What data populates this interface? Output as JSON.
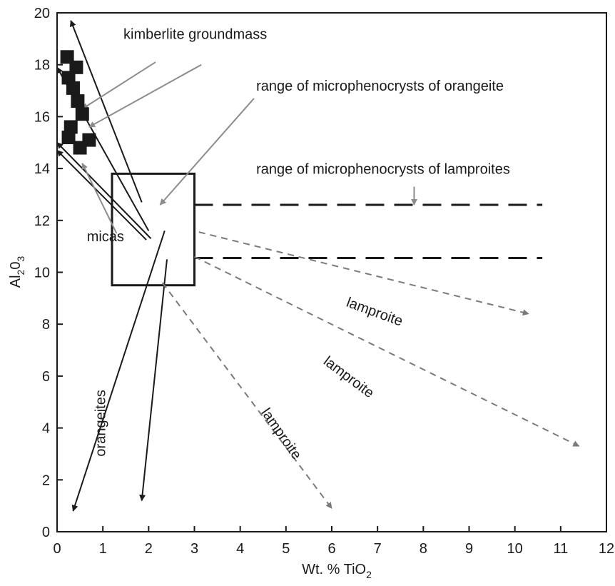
{
  "chart_data": {
    "type": "scatter",
    "xlabel": {
      "main": "Wt. % TiO",
      "sub": "2"
    },
    "ylabel": {
      "p1": "Al",
      "s1": "2",
      "p2": "0",
      "s2": "3"
    },
    "xlim": [
      0,
      12
    ],
    "ylim": [
      0,
      20
    ],
    "x_ticks": [
      0,
      1,
      2,
      3,
      4,
      5,
      6,
      7,
      8,
      9,
      10,
      11,
      12
    ],
    "y_ticks": [
      0,
      2,
      4,
      6,
      8,
      10,
      12,
      14,
      16,
      18,
      20
    ],
    "grid": false,
    "points": [
      {
        "x": 0.22,
        "y": 18.3
      },
      {
        "x": 0.42,
        "y": 17.9
      },
      {
        "x": 0.25,
        "y": 17.5
      },
      {
        "x": 0.35,
        "y": 17.1
      },
      {
        "x": 0.45,
        "y": 16.6
      },
      {
        "x": 0.55,
        "y": 16.1
      },
      {
        "x": 0.3,
        "y": 15.6
      },
      {
        "x": 0.25,
        "y": 15.2
      },
      {
        "x": 0.7,
        "y": 15.1
      },
      {
        "x": 0.5,
        "y": 14.8
      }
    ],
    "boxes": [
      {
        "name": "orangeite-microphenocryst-range",
        "x0": 1.2,
        "x1": 3.0,
        "y0": 9.5,
        "y1": 13.8
      }
    ],
    "dashed_lines": [
      {
        "name": "lamproite-range-upper",
        "x0": 3.0,
        "x1": 10.6,
        "y": 12.6
      },
      {
        "name": "lamproite-range-lower",
        "x0": 3.0,
        "x1": 10.6,
        "y": 10.55
      },
      {
        "name": "lamproite-range-connector",
        "x": 3.0,
        "y0": 10.55,
        "y1": 12.6
      }
    ],
    "trend_arrows": [
      {
        "name": "kimberlite-trend-1",
        "style": "solid",
        "from": [
          1.85,
          12.7
        ],
        "to": [
          0.3,
          19.7
        ]
      },
      {
        "name": "kimberlite-trend-2",
        "style": "solid",
        "from": [
          2.0,
          11.6
        ],
        "to": [
          0.0,
          17.9
        ]
      },
      {
        "name": "mica-trend-1",
        "style": "solid",
        "from": [
          2.05,
          11.3
        ],
        "to": [
          0.0,
          15.0
        ]
      },
      {
        "name": "mica-trend-2",
        "style": "solid",
        "from": [
          1.95,
          11.25
        ],
        "to": [
          0.0,
          14.7
        ]
      },
      {
        "name": "orangeite-trend-1",
        "style": "solid",
        "from": [
          2.35,
          11.6
        ],
        "to": [
          0.35,
          0.8
        ]
      },
      {
        "name": "orangeite-trend-2",
        "style": "solid",
        "from": [
          2.4,
          10.5
        ],
        "to": [
          1.85,
          1.2
        ]
      },
      {
        "name": "lamproite-trend-1",
        "style": "dashed",
        "from": [
          3.1,
          11.55
        ],
        "to": [
          10.3,
          8.4
        ]
      },
      {
        "name": "lamproite-trend-2",
        "style": "dashed",
        "from": [
          3.0,
          10.6
        ],
        "to": [
          11.4,
          3.3
        ]
      },
      {
        "name": "lamproite-trend-3",
        "style": "dashed",
        "from": [
          2.3,
          9.6
        ],
        "to": [
          6.0,
          0.9
        ]
      }
    ],
    "pointer_arrows": [
      {
        "name": "kimberlite-pointer-1",
        "from": [
          2.15,
          18.1
        ],
        "to": [
          0.55,
          16.3
        ]
      },
      {
        "name": "kimberlite-pointer-2",
        "from": [
          3.15,
          18.0
        ],
        "to": [
          0.7,
          15.6
        ]
      },
      {
        "name": "orangeite-range-pointer",
        "from": [
          4.3,
          16.7
        ],
        "to": [
          2.25,
          12.6
        ]
      },
      {
        "name": "lamproite-range-pointer",
        "from": [
          7.8,
          13.3
        ],
        "to": [
          7.8,
          12.6
        ]
      },
      {
        "name": "mica-pointer",
        "from": [
          1.3,
          11.5
        ],
        "to": [
          0.55,
          14.2
        ]
      }
    ],
    "annotations": [
      {
        "key": "kimberlite",
        "text": "kimberlite groundmass",
        "x": 1.45,
        "y": 19.0,
        "rotate": 0
      },
      {
        "key": "orangeite_range",
        "text": "range of microphenocrysts of orangeite",
        "x": 4.35,
        "y": 17.0,
        "rotate": 0
      },
      {
        "key": "lamproite_range",
        "text": "range of microphenocrysts of lamproites",
        "x": 4.35,
        "y": 13.8,
        "rotate": 0
      },
      {
        "key": "micas",
        "text": "micas",
        "x": 0.65,
        "y": 11.2,
        "rotate": 0
      },
      {
        "key": "lamproite1",
        "text": "lamproite",
        "x": 6.3,
        "y": 8.7,
        "rotate": 20
      },
      {
        "key": "lamproite2",
        "text": "lamproite",
        "x": 5.8,
        "y": 6.5,
        "rotate": 37
      },
      {
        "key": "lamproite3",
        "text": "lamproite",
        "x": 4.45,
        "y": 4.6,
        "rotate": 55
      },
      {
        "key": "orangeites",
        "text": "orangeites",
        "x": 1.05,
        "y": 2.9,
        "rotate": -90
      }
    ],
    "colors": {
      "axis": "#1a1a1a",
      "solid_arrow": "#1a1a1a",
      "dashed_arrow": "#7a7a7a",
      "pointer": "#8c8c8c"
    }
  }
}
